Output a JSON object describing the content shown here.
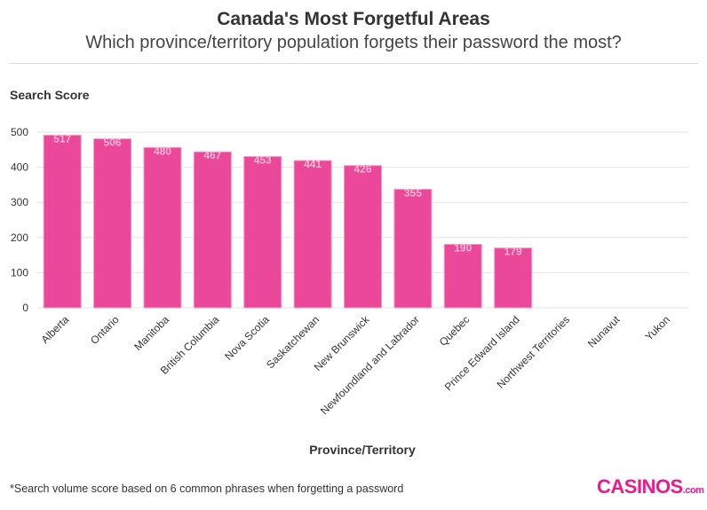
{
  "chart_data": {
    "type": "bar",
    "title": "Canada's Most Forgetful Areas",
    "subtitle": "Which province/territory population forgets their password the most?",
    "ylabel": "Search Score",
    "xlabel": "Province/Territory",
    "categories": [
      "Alberta",
      "Ontario",
      "Manitoba",
      "British Columbia",
      "Nova Scotia",
      "Saskatchewan",
      "New Brunswick",
      "Newfoundland and Labrador",
      "Quebec",
      "Prince Edward Island",
      "Northwest Territories",
      "Nunavut",
      "Yukon"
    ],
    "values": [
      517,
      506,
      480,
      467,
      453,
      441,
      426,
      355,
      190,
      179,
      0,
      0,
      0
    ],
    "data_labels": [
      "517",
      "506",
      "480",
      "467",
      "453",
      "441",
      "426",
      "355",
      "190",
      "179",
      "",
      "",
      ""
    ],
    "yticks": [
      0,
      100,
      200,
      300,
      400,
      500
    ],
    "ylim": [
      0,
      525
    ],
    "grid": true,
    "bar_color": "#ec4899",
    "footnote": "*Search volume score based on 6 common phrases when forgetting a password"
  },
  "logo": {
    "text": "CASINOS",
    "suffix": ".com"
  }
}
